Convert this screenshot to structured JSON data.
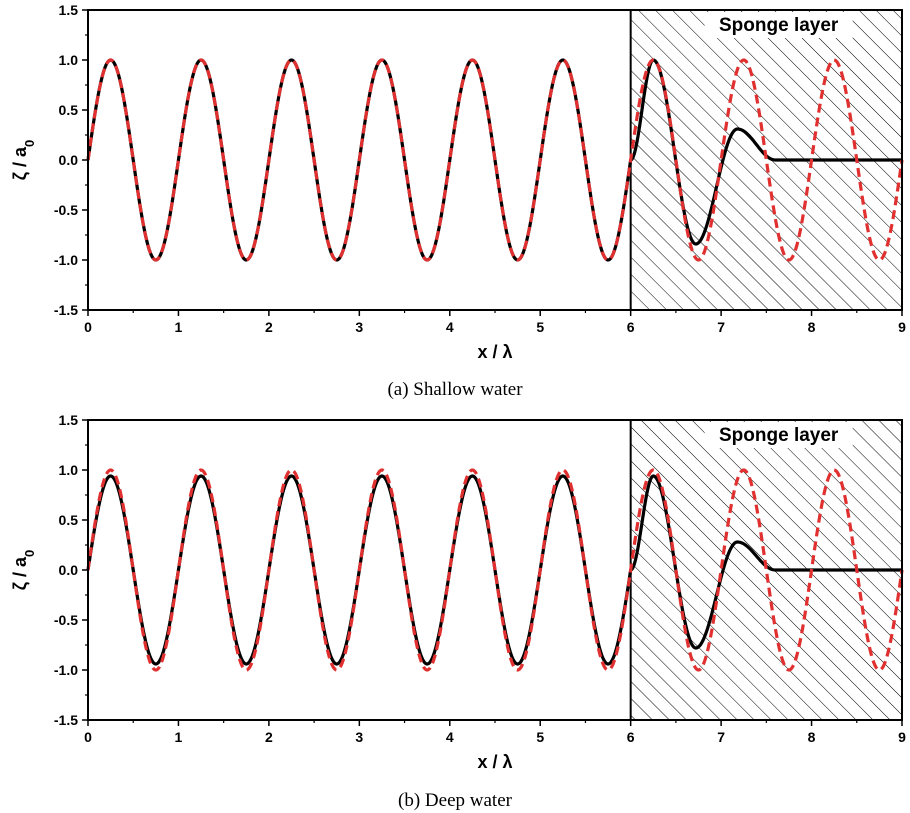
{
  "chart_data": [
    {
      "type": "line",
      "caption": "(a) Shallow water",
      "xlabel": "x / λ",
      "ylabel_main": "ζ / a",
      "ylabel_sub": "0",
      "xlim": [
        0,
        9
      ],
      "ylim": [
        -1.5,
        1.5
      ],
      "x_ticks": [
        "0",
        "1",
        "2",
        "3",
        "4",
        "5",
        "6",
        "7",
        "8",
        "9"
      ],
      "y_ticks": [
        "1.5",
        "1.0",
        "0.5",
        "0.0",
        "-0.5",
        "-1.0",
        "-1.5"
      ],
      "grid": false,
      "shaded_region": {
        "label": "Sponge layer",
        "x_start": 6,
        "x_end": 9,
        "pattern": "diagonal hatch"
      },
      "series": [
        {
          "style": "solid",
          "color": "#000000",
          "amplitude": 1.0,
          "period": 1.0,
          "damping_start": 6,
          "points": [
            [
              6.25,
              1.0
            ],
            [
              6.72,
              -0.84
            ],
            [
              7.18,
              0.31
            ],
            [
              7.6,
              0.0
            ],
            [
              9.0,
              0.0
            ]
          ]
        },
        {
          "style": "dashed",
          "color": "#e03030",
          "amplitude": 1.0,
          "period": 1.0
        }
      ]
    },
    {
      "type": "line",
      "caption": "(b) Deep water",
      "xlabel": "x / λ",
      "ylabel_main": "ζ / a",
      "ylabel_sub": "0",
      "xlim": [
        0,
        9
      ],
      "ylim": [
        -1.5,
        1.5
      ],
      "x_ticks": [
        "0",
        "1",
        "2",
        "3",
        "4",
        "5",
        "6",
        "7",
        "8",
        "9"
      ],
      "y_ticks": [
        "1.5",
        "1.0",
        "0.5",
        "0.0",
        "-0.5",
        "-1.0",
        "-1.5"
      ],
      "grid": false,
      "shaded_region": {
        "label": "Sponge layer",
        "x_start": 6,
        "x_end": 9,
        "pattern": "diagonal hatch"
      },
      "series": [
        {
          "style": "solid",
          "color": "#000000",
          "amplitude": 0.94,
          "period": 1.0,
          "damping_start": 6,
          "points": [
            [
              6.25,
              0.94
            ],
            [
              6.72,
              -0.78
            ],
            [
              7.18,
              0.28
            ],
            [
              7.6,
              0.0
            ],
            [
              9.0,
              0.0
            ]
          ]
        },
        {
          "style": "dashed",
          "color": "#e03030",
          "amplitude": 1.0,
          "period": 1.0
        }
      ]
    }
  ]
}
